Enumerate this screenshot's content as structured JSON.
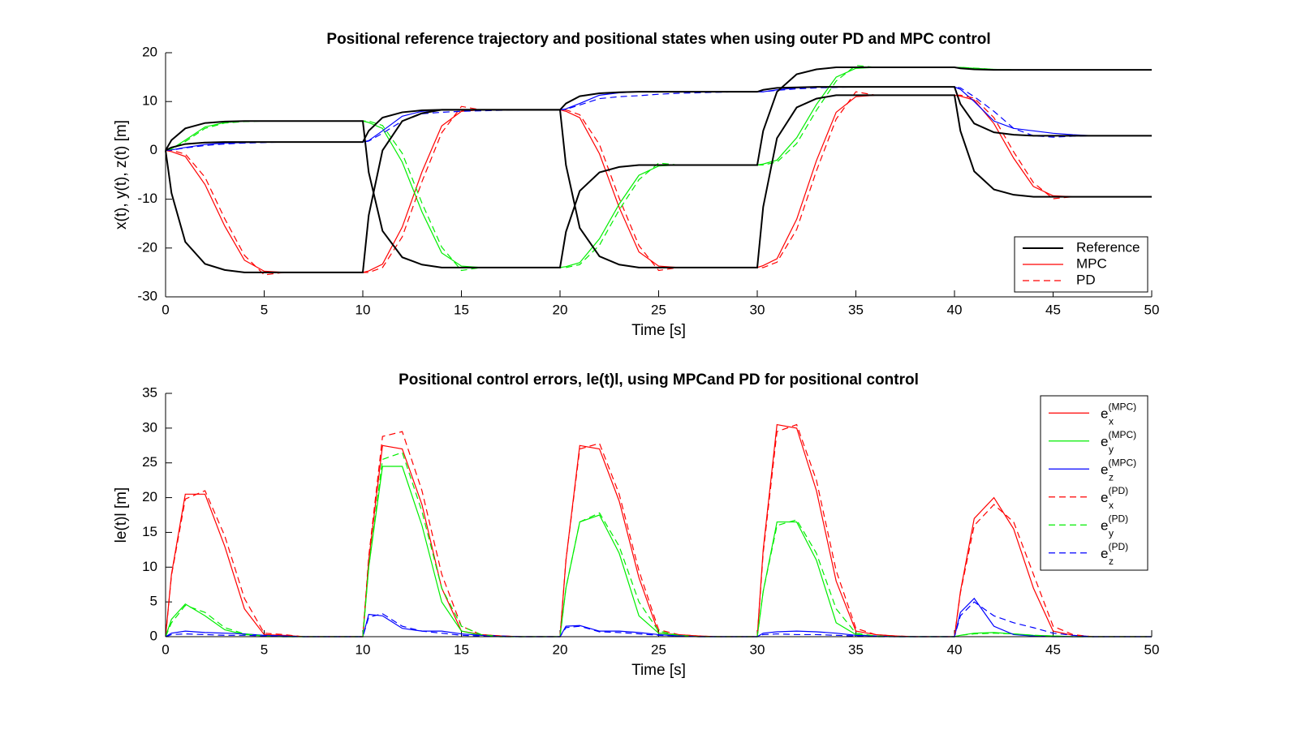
{
  "chart_data": [
    {
      "type": "line",
      "title": "Positional reference trajectory and positional states when using outer PD and MPC control",
      "xlabel": "Time [s]",
      "ylabel": "x(t), y(t), z(t) [m]",
      "xlim": [
        0,
        50
      ],
      "xticks": [
        0,
        5,
        10,
        15,
        20,
        25,
        30,
        35,
        40,
        45,
        50
      ],
      "ylim": [
        -30,
        20
      ],
      "yticks": [
        -30,
        -20,
        -10,
        0,
        10,
        20
      ],
      "legend_position": "lower right",
      "legend": [
        {
          "name": "Reference",
          "color": "#000000",
          "dash": false
        },
        {
          "name": "MPC",
          "color": "#ff0000",
          "dash": false
        },
        {
          "name": "PD",
          "color": "#ff0000",
          "dash": true
        }
      ],
      "x": [
        0,
        0.3,
        1,
        2,
        3,
        4,
        5,
        6,
        7,
        8,
        9,
        10,
        10.3,
        11,
        12,
        13,
        14,
        15,
        16,
        17,
        18,
        19,
        20,
        20.3,
        21,
        22,
        23,
        24,
        25,
        26,
        27,
        28,
        29,
        30,
        30.3,
        31,
        32,
        33,
        34,
        35,
        36,
        37,
        38,
        39,
        40,
        40.3,
        41,
        42,
        43,
        44,
        45,
        46,
        47,
        48,
        49,
        50
      ],
      "series": [
        {
          "color": "#ff0000",
          "dash": false,
          "width": 1.2,
          "values": [
            0,
            -0.25,
            -1.25,
            -7,
            -15.5,
            -22.5,
            -24.75,
            -25,
            -25,
            -25,
            -25,
            -25,
            -24.7,
            -23.3,
            -15.7,
            -4.4,
            5,
            8,
            8.3,
            8.3,
            8.3,
            8.3,
            8.3,
            8,
            6.7,
            -0.7,
            -11.7,
            -20.8,
            -23.7,
            -24,
            -24,
            -24,
            -24,
            -24,
            -23.6,
            -22.2,
            -14.1,
            -2.1,
            7.8,
            11,
            11.3,
            11.3,
            11.3,
            11.3,
            11.3,
            11.1,
            10.3,
            5.5,
            -1.6,
            -7.4,
            -9.3,
            -9.5,
            -9.5,
            -9.5,
            -9.5,
            -9.5
          ]
        },
        {
          "color": "#00ee00",
          "dash": false,
          "width": 1.2,
          "values": [
            0,
            0.3,
            2.1,
            4.8,
            5.7,
            6,
            6,
            6,
            6,
            6,
            6,
            6,
            5.7,
            4.5,
            -2.4,
            -12.6,
            -21,
            -23.7,
            -24,
            -24,
            -24,
            -24,
            -24,
            -23.8,
            -23,
            -18.1,
            -11,
            -5.1,
            -3.2,
            -3,
            -3,
            -3,
            -3,
            -3,
            -2.8,
            -2,
            2.6,
            9.4,
            15,
            16.8,
            17,
            17,
            17,
            17,
            17,
            17,
            16.8,
            16.6,
            16.5,
            16.5,
            16.5,
            16.5,
            16.5,
            16.5,
            16.5,
            16.5
          ]
        },
        {
          "color": "#0000ff",
          "dash": false,
          "width": 1.2,
          "values": [
            0,
            0.1,
            0.6,
            1.2,
            1.5,
            1.6,
            1.7,
            1.7,
            1.7,
            1.7,
            1.7,
            1.7,
            2,
            4,
            7,
            8,
            8.3,
            8.3,
            8.3,
            8.3,
            8.3,
            8.3,
            8.3,
            8.5,
            9.6,
            11.3,
            11.8,
            12,
            12,
            12,
            12,
            12,
            12,
            12,
            12,
            12.4,
            12.8,
            12.95,
            13,
            13,
            13,
            13,
            13,
            13,
            13,
            12.5,
            10,
            6,
            4.5,
            4,
            3.5,
            3.2,
            3,
            3,
            3,
            3
          ]
        },
        {
          "color": "#ff0000",
          "dash": true,
          "width": 1.2,
          "values": [
            0,
            0,
            -0.75,
            -5.5,
            -14,
            -21.5,
            -25.5,
            -25,
            -25,
            -25,
            -25,
            -25,
            -25,
            -24,
            -17.7,
            -6.4,
            3.6,
            9,
            8.3,
            8.3,
            8.3,
            8.3,
            8.3,
            8.3,
            7.3,
            1.2,
            -9.8,
            -19.5,
            -24.6,
            -24,
            -24,
            -24,
            -24,
            -24,
            -24,
            -22.9,
            -16.2,
            -4.2,
            6.4,
            12,
            11.3,
            11.3,
            11.3,
            11.3,
            11.3,
            11.3,
            10.7,
            6.7,
            -0.3,
            -6.6,
            -9.9,
            -9.5,
            -9.5,
            -9.5,
            -9.5,
            -9.5
          ]
        },
        {
          "color": "#00ee00",
          "dash": true,
          "width": 1.2,
          "values": [
            0,
            0.2,
            1.8,
            4.5,
            5.6,
            5.9,
            6,
            6,
            6,
            6,
            6,
            6,
            6,
            5.1,
            -0.6,
            -10.8,
            -19.8,
            -24.6,
            -24,
            -24,
            -24,
            -24,
            -24,
            -24,
            -23.4,
            -19.4,
            -12.2,
            -6,
            -2.6,
            -3,
            -3,
            -3,
            -3,
            -3,
            -3,
            -2.4,
            1.4,
            8.2,
            14.2,
            17.4,
            17,
            17,
            17,
            17,
            17,
            17,
            16.85,
            16.6,
            16.5,
            16.5,
            16.5,
            16.5,
            16.5,
            16.5,
            16.5,
            16.5
          ]
        },
        {
          "color": "#0000ff",
          "dash": true,
          "width": 1.2,
          "values": [
            0,
            0.05,
            0.5,
            1,
            1.3,
            1.5,
            1.6,
            1.7,
            1.7,
            1.7,
            1.7,
            1.7,
            1.9,
            3.5,
            6,
            7.5,
            7.8,
            8,
            8.1,
            8.2,
            8.3,
            8.3,
            8.3,
            8.4,
            9.3,
            10.6,
            11,
            11.2,
            11.5,
            11.7,
            11.8,
            11.9,
            12,
            12,
            12,
            12.3,
            12.6,
            12.8,
            12.9,
            13,
            13,
            13,
            13,
            13,
            13,
            12.8,
            11,
            8,
            4.5,
            3,
            2.7,
            2.9,
            3,
            3,
            3,
            3
          ]
        },
        {
          "color": "#000000",
          "dash": false,
          "width": 2,
          "values": [
            0,
            -8.75,
            -18.75,
            -23.25,
            -24.5,
            -25,
            -25,
            -25,
            -25,
            -25,
            -25,
            -25,
            -13.3,
            0,
            6,
            7.6,
            8.3,
            8.3,
            8.3,
            8.3,
            8.3,
            8.3,
            8.3,
            -3,
            -15.9,
            -21.7,
            -23.4,
            -24,
            -24,
            -24,
            -24,
            -24,
            -24,
            -24,
            -11.6,
            2.5,
            8.8,
            10.6,
            11.3,
            11.3,
            11.3,
            11.3,
            11.3,
            11.3,
            11.3,
            4,
            -4.3,
            -8,
            -9.1,
            -9.5,
            -9.5,
            -9.5,
            -9.5,
            -9.5,
            -9.5,
            -9.5
          ]
        },
        {
          "color": "#000000",
          "dash": false,
          "width": 2,
          "values": [
            0,
            2.1,
            4.5,
            5.6,
            5.9,
            6,
            6,
            6,
            6,
            6,
            6,
            6,
            -4.5,
            -16.5,
            -21.9,
            -23.4,
            -24,
            -24,
            -24,
            -24,
            -24,
            -24,
            -24,
            -16.7,
            -8.3,
            -4.5,
            -3.4,
            -3,
            -3,
            -3,
            -3,
            -3,
            -3,
            -3,
            4,
            12,
            15.6,
            16.6,
            17,
            17,
            17,
            17,
            17,
            17,
            17,
            16.8,
            16.6,
            16.5,
            16.5,
            16.5,
            16.5,
            16.5,
            16.5,
            16.5,
            16.5,
            16.5
          ]
        },
        {
          "color": "#000000",
          "dash": false,
          "width": 2,
          "values": [
            0,
            0.6,
            1.3,
            1.6,
            1.7,
            1.7,
            1.7,
            1.7,
            1.7,
            1.7,
            1.7,
            1.7,
            4,
            6.7,
            7.8,
            8.2,
            8.3,
            8.3,
            8.3,
            8.3,
            8.3,
            8.3,
            8.3,
            9.6,
            11.1,
            11.7,
            11.9,
            12,
            12,
            12,
            12,
            12,
            12,
            12,
            12.4,
            12.8,
            12.9,
            13,
            13,
            13,
            13,
            13,
            13,
            13,
            13,
            9.5,
            5.5,
            3.7,
            3.2,
            3,
            3,
            3,
            3,
            3,
            3,
            3
          ]
        }
      ]
    },
    {
      "type": "line",
      "title": "Positional control errors, le(t)l, using MPCand PD for positional control",
      "xlabel": "Time [s]",
      "ylabel": "le(t)l [m]",
      "xlim": [
        0,
        50
      ],
      "xticks": [
        0,
        5,
        10,
        15,
        20,
        25,
        30,
        35,
        40,
        45,
        50
      ],
      "ylim": [
        0,
        35
      ],
      "yticks": [
        0,
        5,
        10,
        15,
        20,
        25,
        30,
        35
      ],
      "legend_position": "upper right",
      "x": [
        0,
        0.3,
        1,
        2,
        3,
        4,
        5,
        6,
        7,
        8,
        9,
        10,
        10.3,
        11,
        12,
        13,
        14,
        15,
        16,
        17,
        18,
        19,
        20,
        20.3,
        21,
        22,
        23,
        24,
        25,
        26,
        27,
        28,
        29,
        30,
        30.3,
        31,
        32,
        33,
        34,
        35,
        36,
        37,
        38,
        39,
        40,
        40.3,
        41,
        42,
        43,
        44,
        45,
        46,
        47,
        48,
        49,
        50
      ],
      "series": [
        {
          "label": {
            "main": "e",
            "sub": "x",
            "sup": "(MPC)"
          },
          "color": "#ff0000",
          "dash": false,
          "values": [
            0,
            9,
            20.5,
            20.5,
            13,
            4,
            0.3,
            0.2,
            0,
            0,
            0,
            0,
            11,
            27.5,
            27,
            19,
            7,
            0.8,
            0.3,
            0.1,
            0,
            0,
            0,
            11,
            27.5,
            27,
            19.5,
            8.5,
            0.5,
            0.3,
            0.1,
            0,
            0,
            0,
            12.5,
            30.5,
            30,
            21,
            8,
            0.8,
            0.3,
            0.1,
            0,
            0,
            0,
            6.5,
            17,
            20,
            15.5,
            7,
            0.8,
            0.2,
            0,
            0,
            0,
            0
          ]
        },
        {
          "label": {
            "main": "e",
            "sub": "y",
            "sup": "(MPC)"
          },
          "color": "#00ee00",
          "dash": false,
          "values": [
            0,
            2.5,
            4.7,
            3,
            1,
            0.3,
            0.1,
            0,
            0,
            0,
            0,
            0,
            10,
            24.5,
            24.5,
            16,
            5,
            0.8,
            0.2,
            0,
            0,
            0,
            0,
            7,
            16.5,
            17.5,
            12,
            3,
            0.5,
            0.2,
            0,
            0,
            0,
            0,
            6.5,
            16.5,
            16.5,
            11,
            2,
            0.3,
            0.1,
            0,
            0,
            0,
            0,
            0.2,
            0.5,
            0.6,
            0.4,
            0.2,
            0.1,
            0,
            0,
            0,
            0,
            0
          ]
        },
        {
          "label": {
            "main": "e",
            "sub": "z",
            "sup": "(MPC)"
          },
          "color": "#0000ff",
          "dash": false,
          "values": [
            0,
            0.5,
            0.8,
            0.6,
            0.5,
            0.4,
            0.2,
            0.1,
            0,
            0,
            0,
            0,
            3.2,
            3,
            1.2,
            0.8,
            0.8,
            0.4,
            0.2,
            0.1,
            0,
            0,
            0,
            1.5,
            1.6,
            0.8,
            0.8,
            0.6,
            0.3,
            0.1,
            0,
            0,
            0,
            0,
            0.5,
            0.7,
            0.8,
            0.7,
            0.5,
            0.2,
            0.1,
            0,
            0,
            0,
            0,
            3.5,
            5.5,
            1.5,
            0.3,
            0.1,
            0,
            0,
            0,
            0,
            0,
            0
          ]
        },
        {
          "label": {
            "main": "e",
            "sub": "x",
            "sup": "(PD)"
          },
          "color": "#ff0000",
          "dash": true,
          "values": [
            0,
            8.8,
            19.8,
            21,
            14.5,
            5.5,
            0.5,
            0.3,
            0,
            0,
            0,
            0,
            11.5,
            28.8,
            29.5,
            21,
            9,
            1.5,
            0.3,
            0.1,
            0,
            0,
            0,
            11,
            27,
            27.8,
            20.5,
            9.5,
            1,
            0.3,
            0.1,
            0,
            0,
            0,
            12,
            29.5,
            30.5,
            22.5,
            9.5,
            1.2,
            0.3,
            0.1,
            0,
            0,
            0,
            6.3,
            16,
            19,
            16.5,
            9,
            1.5,
            0.3,
            0,
            0,
            0,
            0
          ]
        },
        {
          "label": {
            "main": "e",
            "sub": "y",
            "sup": "(PD)"
          },
          "color": "#00ee00",
          "dash": true,
          "values": [
            0,
            2,
            4.5,
            3.5,
            1.3,
            0.4,
            0.1,
            0,
            0,
            0,
            0,
            0,
            10,
            25.5,
            26.5,
            18,
            7,
            1.5,
            0.3,
            0,
            0,
            0,
            0,
            7,
            16.5,
            17.8,
            13,
            5,
            0.8,
            0.2,
            0,
            0,
            0,
            0,
            6.5,
            16,
            16.8,
            12,
            4,
            0.5,
            0.1,
            0,
            0,
            0,
            0,
            0.2,
            0.4,
            0.5,
            0.4,
            0.2,
            0.1,
            0,
            0,
            0,
            0,
            0
          ]
        },
        {
          "label": {
            "main": "e",
            "sub": "z",
            "sup": "(PD)"
          },
          "color": "#0000ff",
          "dash": true,
          "values": [
            0,
            0.3,
            0.4,
            0.3,
            0.2,
            0.2,
            0.1,
            0,
            0,
            0,
            0,
            0,
            2.8,
            3.3,
            1.5,
            0.8,
            0.5,
            0.2,
            0.1,
            0,
            0,
            0,
            0,
            1.3,
            1.5,
            0.7,
            0.6,
            0.4,
            0.2,
            0.1,
            0,
            0,
            0,
            0,
            0.3,
            0.4,
            0.3,
            0.3,
            0.2,
            0.1,
            0,
            0,
            0,
            0,
            0,
            3,
            5,
            3,
            2,
            1.3,
            0.5,
            0.2,
            0,
            0,
            0,
            0
          ]
        }
      ]
    }
  ]
}
